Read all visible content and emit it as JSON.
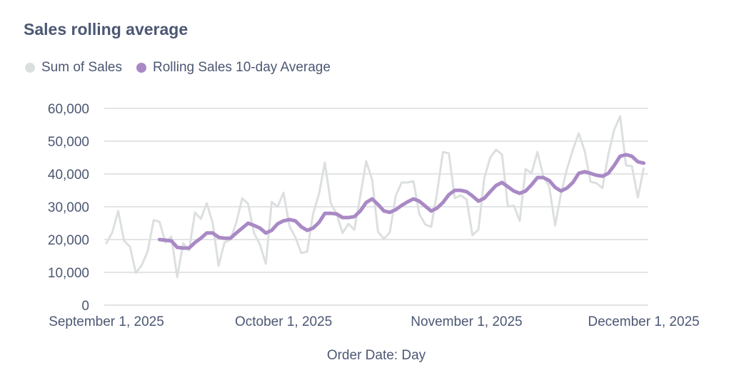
{
  "chart_data": {
    "type": "line",
    "title": "Sales rolling average",
    "xlabel": "Order Date: Day",
    "ylabel": "",
    "ylim": [
      0,
      60000
    ],
    "yticks": [
      "0",
      "10,000",
      "20,000",
      "30,000",
      "40,000",
      "50,000",
      "60,000"
    ],
    "ytick_values": [
      0,
      10000,
      20000,
      30000,
      40000,
      50000,
      60000
    ],
    "xticks": [
      {
        "date": "2025-09-01",
        "label": "September 1, 2025"
      },
      {
        "date": "2025-10-01",
        "label": "October 1, 2025"
      },
      {
        "date": "2025-11-01",
        "label": "November 1, 2025"
      },
      {
        "date": "2025-12-01",
        "label": "December 1, 2025"
      }
    ],
    "grid": true,
    "legend_position": "top-left",
    "x_start": "2025-09-01",
    "x_end": "2025-12-01",
    "x_interval": "day",
    "series": [
      {
        "name": "Sum of Sales",
        "color": "#dcdfe0",
        "values": [
          18900,
          22200,
          28700,
          19600,
          17800,
          9800,
          12200,
          16500,
          25900,
          25400,
          19100,
          20900,
          8500,
          18900,
          16700,
          28300,
          26300,
          31100,
          25000,
          12000,
          19100,
          20000,
          25200,
          32600,
          30900,
          22000,
          18500,
          12600,
          31500,
          30000,
          34300,
          24100,
          20700,
          15900,
          16300,
          27800,
          33900,
          43500,
          31100,
          27800,
          22000,
          24800,
          23000,
          33300,
          43900,
          38300,
          22400,
          20200,
          22200,
          33300,
          37400,
          37400,
          37800,
          27800,
          24600,
          23900,
          34300,
          46700,
          46300,
          32600,
          33500,
          32200,
          21300,
          23000,
          38700,
          45000,
          47400,
          45900,
          30000,
          30400,
          25700,
          41500,
          40200,
          46700,
          39300,
          36100,
          24300,
          34100,
          41500,
          47400,
          52400,
          47000,
          37600,
          37200,
          35700,
          45900,
          53500,
          57600,
          42600,
          42400,
          32800,
          41700
        ]
      },
      {
        "name": "Rolling Sales 10-day Average",
        "color": "#a989c5",
        "values": [
          null,
          null,
          null,
          null,
          null,
          null,
          null,
          null,
          null,
          20000,
          19800,
          19600,
          17600,
          17400,
          17400,
          19100,
          20400,
          22000,
          22000,
          20700,
          20400,
          20400,
          22000,
          23500,
          25000,
          24300,
          23500,
          22000,
          22800,
          24800,
          25700,
          26100,
          25700,
          23900,
          22800,
          23500,
          25200,
          28000,
          28000,
          27800,
          26700,
          26700,
          27000,
          28700,
          31300,
          32400,
          30700,
          28700,
          28300,
          29100,
          30400,
          31500,
          32400,
          31700,
          30200,
          28700,
          29600,
          31300,
          33700,
          35000,
          35000,
          34600,
          33300,
          31700,
          32600,
          34600,
          36500,
          37400,
          36100,
          34800,
          34100,
          34800,
          36700,
          38900,
          38900,
          38000,
          35900,
          34800,
          35700,
          37400,
          40200,
          40700,
          40200,
          39600,
          39300,
          40200,
          42600,
          45400,
          45900,
          45400,
          43700,
          43300
        ]
      }
    ]
  }
}
